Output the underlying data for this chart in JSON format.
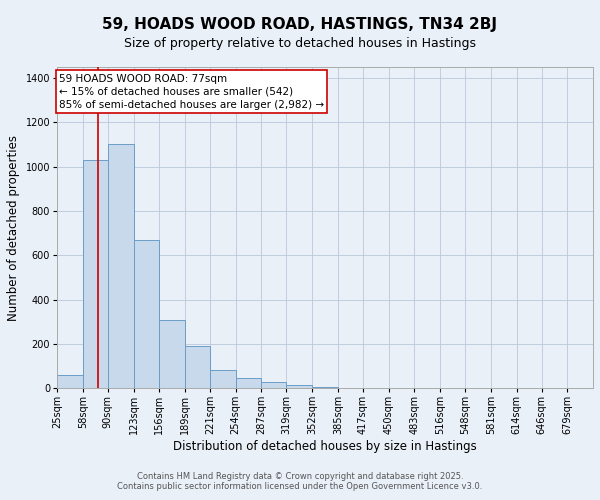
{
  "title": "59, HOADS WOOD ROAD, HASTINGS, TN34 2BJ",
  "subtitle": "Size of property relative to detached houses in Hastings",
  "xlabel": "Distribution of detached houses by size in Hastings",
  "ylabel": "Number of detached properties",
  "bin_edges": [
    25,
    58,
    90,
    123,
    156,
    189,
    221,
    254,
    287,
    319,
    352,
    385,
    417,
    450,
    483,
    516,
    548,
    581,
    614,
    646,
    679
  ],
  "bar_values": [
    60,
    1030,
    1100,
    670,
    310,
    190,
    80,
    45,
    30,
    15,
    5,
    2,
    1,
    0,
    0,
    0,
    0,
    0,
    0,
    0
  ],
  "bar_color": "#c9d9ec",
  "bar_edge_color": "#6a9dc8",
  "property_size": 77,
  "red_line_color": "#cc0000",
  "ylim": [
    0,
    1450
  ],
  "yticks": [
    0,
    200,
    400,
    600,
    800,
    1000,
    1200,
    1400
  ],
  "annotation_line1": "59 HOADS WOOD ROAD: 77sqm",
  "annotation_line2": "← 15% of detached houses are smaller (542)",
  "annotation_line3": "85% of semi-detached houses are larger (2,982) →",
  "background_color": "#eaf0f8",
  "plot_background_color": "#eaf0f8",
  "footer_line1": "Contains HM Land Registry data © Crown copyright and database right 2025.",
  "footer_line2": "Contains public sector information licensed under the Open Government Licence v3.0.",
  "title_fontsize": 11,
  "subtitle_fontsize": 9,
  "axis_label_fontsize": 8.5,
  "tick_fontsize": 7,
  "annotation_fontsize": 7.5,
  "footer_fontsize": 6
}
